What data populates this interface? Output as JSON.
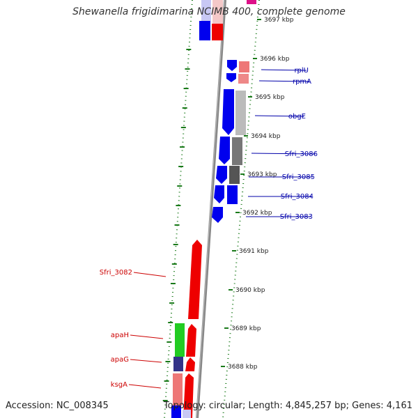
{
  "title": "Shewanella frigidimarina NCIMB 400, complete genome",
  "footer": {
    "accession": "Accession: NC_008345",
    "topology": "Topology: circular; Length: 4,845,257 bp; Genes: 4,161"
  },
  "colors": {
    "forward_gene": "#ee0000",
    "reverse_gene": "#0000ee",
    "label_blue": "#0000aa",
    "label_red": "#cc0000",
    "ruler_dots": "#1a7a1a",
    "backbone": "#888888"
  },
  "ruler": {
    "ticks": [
      {
        "label": "3697 kbp"
      },
      {
        "label": "3696 kbp"
      },
      {
        "label": "3695 kbp"
      },
      {
        "label": "3694 kbp"
      },
      {
        "label": "3693 kbp"
      },
      {
        "label": "3692 kbp"
      },
      {
        "label": "3691 kbp"
      },
      {
        "label": "3690 kbp"
      },
      {
        "label": "3689 kbp"
      },
      {
        "label": "3688 kbp"
      }
    ]
  },
  "gene_labels": [
    {
      "name": "rplU",
      "strand": "reverse"
    },
    {
      "name": "rpmA",
      "strand": "reverse"
    },
    {
      "name": "obgE",
      "strand": "reverse"
    },
    {
      "name": "Sfri_3086",
      "strand": "reverse"
    },
    {
      "name": "Sfri_3085",
      "strand": "reverse"
    },
    {
      "name": "Sfri_3084",
      "strand": "reverse"
    },
    {
      "name": "Sfri_3083",
      "strand": "reverse"
    },
    {
      "name": "Sfri_3082",
      "strand": "forward"
    },
    {
      "name": "apaH",
      "strand": "forward"
    },
    {
      "name": "apaG",
      "strand": "forward"
    },
    {
      "name": "ksgA",
      "strand": "forward"
    }
  ]
}
